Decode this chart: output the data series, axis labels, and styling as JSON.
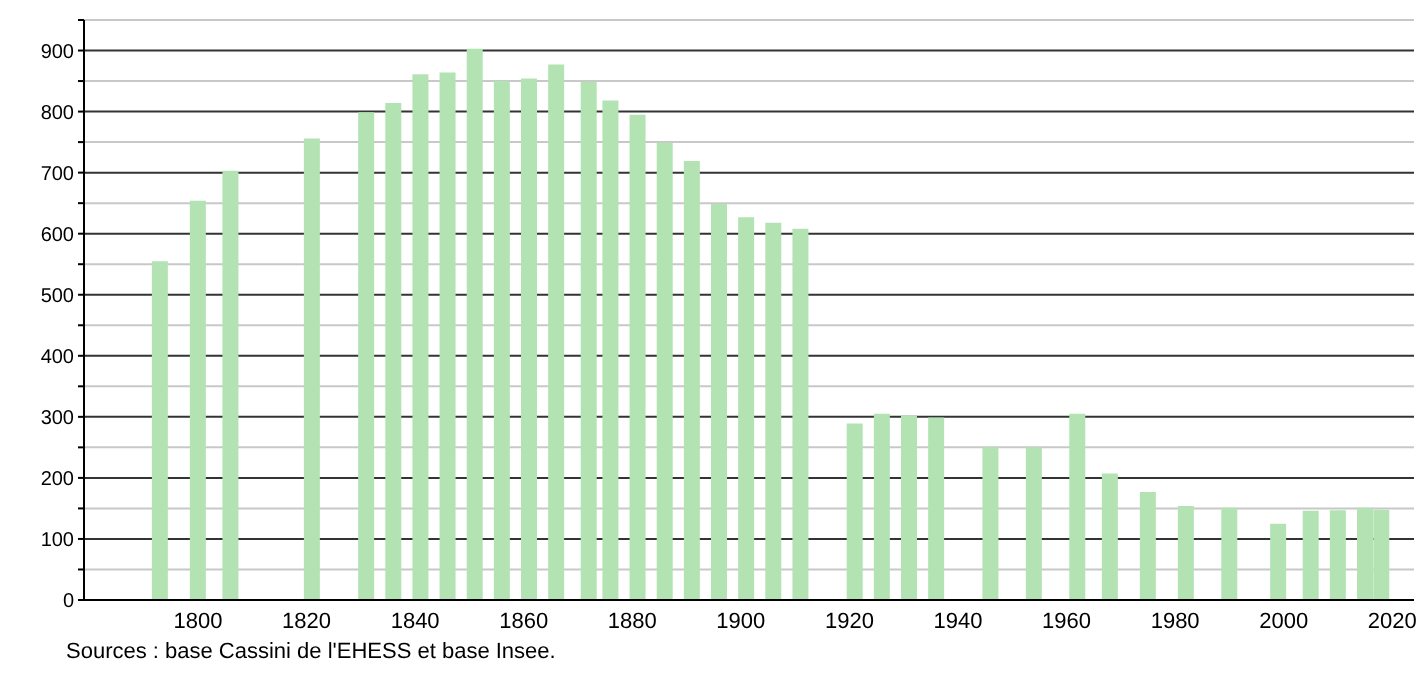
{
  "chart_data": {
    "type": "bar",
    "x": [
      1793,
      1800,
      1806,
      1821,
      1831,
      1836,
      1841,
      1846,
      1851,
      1856,
      1861,
      1866,
      1872,
      1876,
      1881,
      1886,
      1891,
      1896,
      1901,
      1906,
      1911,
      1921,
      1926,
      1931,
      1936,
      1946,
      1954,
      1962,
      1968,
      1975,
      1982,
      1990,
      1999,
      2005,
      2010,
      2015,
      2018
    ],
    "values": [
      555,
      654,
      703,
      756,
      799,
      814,
      861,
      864,
      903,
      850,
      854,
      877,
      849,
      818,
      795,
      749,
      719,
      649,
      627,
      618,
      608,
      289,
      305,
      302,
      299,
      250,
      250,
      305,
      207,
      177,
      154,
      151,
      125,
      146,
      147,
      151,
      148
    ],
    "color": "#b3e3b3",
    "xlim": [
      1779,
      2024
    ],
    "xticks": [
      1800,
      1820,
      1840,
      1860,
      1880,
      1900,
      1920,
      1940,
      1960,
      1980,
      2000,
      2020
    ],
    "ylim": [
      0,
      950
    ],
    "yticks": [
      0,
      {
        "value": 50,
        "label": null
      },
      100,
      {
        "value": 150,
        "label": null
      },
      200,
      {
        "value": 250,
        "label": null
      },
      300,
      {
        "value": 350,
        "label": null
      },
      400,
      {
        "value": 450,
        "label": null
      },
      500,
      {
        "value": 550,
        "label": null
      },
      600,
      {
        "value": 650,
        "label": null
      },
      700,
      {
        "value": 750,
        "label": null
      },
      800,
      {
        "value": 850,
        "label": null
      },
      900,
      {
        "value": 950,
        "label": null
      }
    ],
    "grid": "y",
    "annotations": [
      "Sources : base Cassini de l'EHESS et base Insee."
    ]
  }
}
